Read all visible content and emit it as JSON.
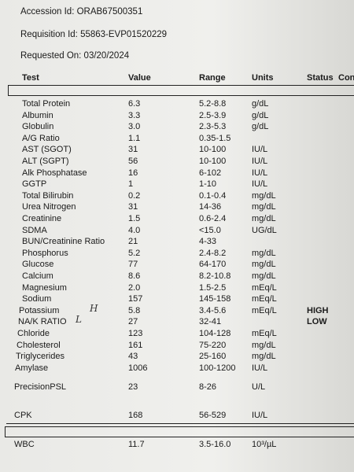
{
  "header": {
    "accession": "Accession Id: ORAB67500351",
    "requisition": "Requisition Id: 55863-EVP01520229",
    "requested": "Requested On: 03/20/2024"
  },
  "table": {
    "columns": [
      "Test",
      "Value",
      "Range",
      "Units",
      "Status",
      "Con"
    ],
    "rows": [
      {
        "test": "Total Protein",
        "value": "6.3",
        "range": "5.2-8.8",
        "units": "g/dL"
      },
      {
        "test": "Albumin",
        "value": "3.3",
        "range": "2.5-3.9",
        "units": "g/dL"
      },
      {
        "test": "Globulin",
        "value": "3.0",
        "range": "2.3-5.3",
        "units": "g/dL"
      },
      {
        "test": "A/G Ratio",
        "value": "1.1",
        "range": "0.35-1.5"
      },
      {
        "test": "AST (SGOT)",
        "value": "31",
        "range": "10-100",
        "units": "IU/L"
      },
      {
        "test": "ALT (SGPT)",
        "value": "56",
        "range": "10-100",
        "units": "IU/L"
      },
      {
        "test": "Alk Phosphatase",
        "value": "16",
        "range": "6-102",
        "units": "IU/L"
      },
      {
        "test": "GGTP",
        "value": "1",
        "range": "1-10",
        "units": "IU/L"
      },
      {
        "test": "Total Bilirubin",
        "value": "0.2",
        "range": "0.1-0.4",
        "units": "mg/dL"
      },
      {
        "test": "Urea Nitrogen",
        "value": "31",
        "range": "14-36",
        "units": "mg/dL"
      },
      {
        "test": "Creatinine",
        "value": "1.5",
        "range": "0.6-2.4",
        "units": "mg/dL"
      },
      {
        "test": "SDMA",
        "value": "4.0",
        "range": "<15.0",
        "units": "UG/dL"
      },
      {
        "test": "BUN/Creatinine Ratio",
        "value": "21",
        "range": "4-33"
      },
      {
        "test": "Phosphorus",
        "value": "5.2",
        "range": "2.4-8.2",
        "units": "mg/dL"
      },
      {
        "test": "Glucose",
        "value": "77",
        "range": "64-170",
        "units": "mg/dL"
      },
      {
        "test": "Calcium",
        "value": "8.6",
        "range": "8.2-10.8",
        "units": "mg/dL"
      },
      {
        "test": "Magnesium",
        "value": "2.0",
        "range": "1.5-2.5",
        "units": "mEq/L"
      },
      {
        "test": "Sodium",
        "value": "157",
        "range": "145-158",
        "units": "mEq/L"
      },
      {
        "test": "Potassium",
        "value": "5.8",
        "range": "3.4-5.6",
        "units": "mEq/L",
        "status": "HIGH",
        "note": "H"
      },
      {
        "test": "NA/K RATIO",
        "value": "27",
        "range": "32-41",
        "status": "LOW",
        "note": "L"
      },
      {
        "test": "Chloride",
        "value": "123",
        "range": "104-128",
        "units": "mEq/L"
      },
      {
        "test": "Cholesterol",
        "value": "161",
        "range": "75-220",
        "units": "mg/dL"
      },
      {
        "test": "Triglycerides",
        "value": "43",
        "range": "25-160",
        "units": "mg/dL"
      },
      {
        "test": "Amylase",
        "value": "1006",
        "range": "100-1200",
        "units": "IU/L"
      },
      {
        "test": "PrecisionPSL",
        "value": "23",
        "range": "8-26",
        "units": "U/L"
      },
      {
        "test": "CPK",
        "value": "168",
        "range": "56-529",
        "units": "IU/L"
      },
      {
        "test": "WBC",
        "value": "11.7",
        "range": "3.5-16.0",
        "units": "10³/µL"
      }
    ]
  }
}
